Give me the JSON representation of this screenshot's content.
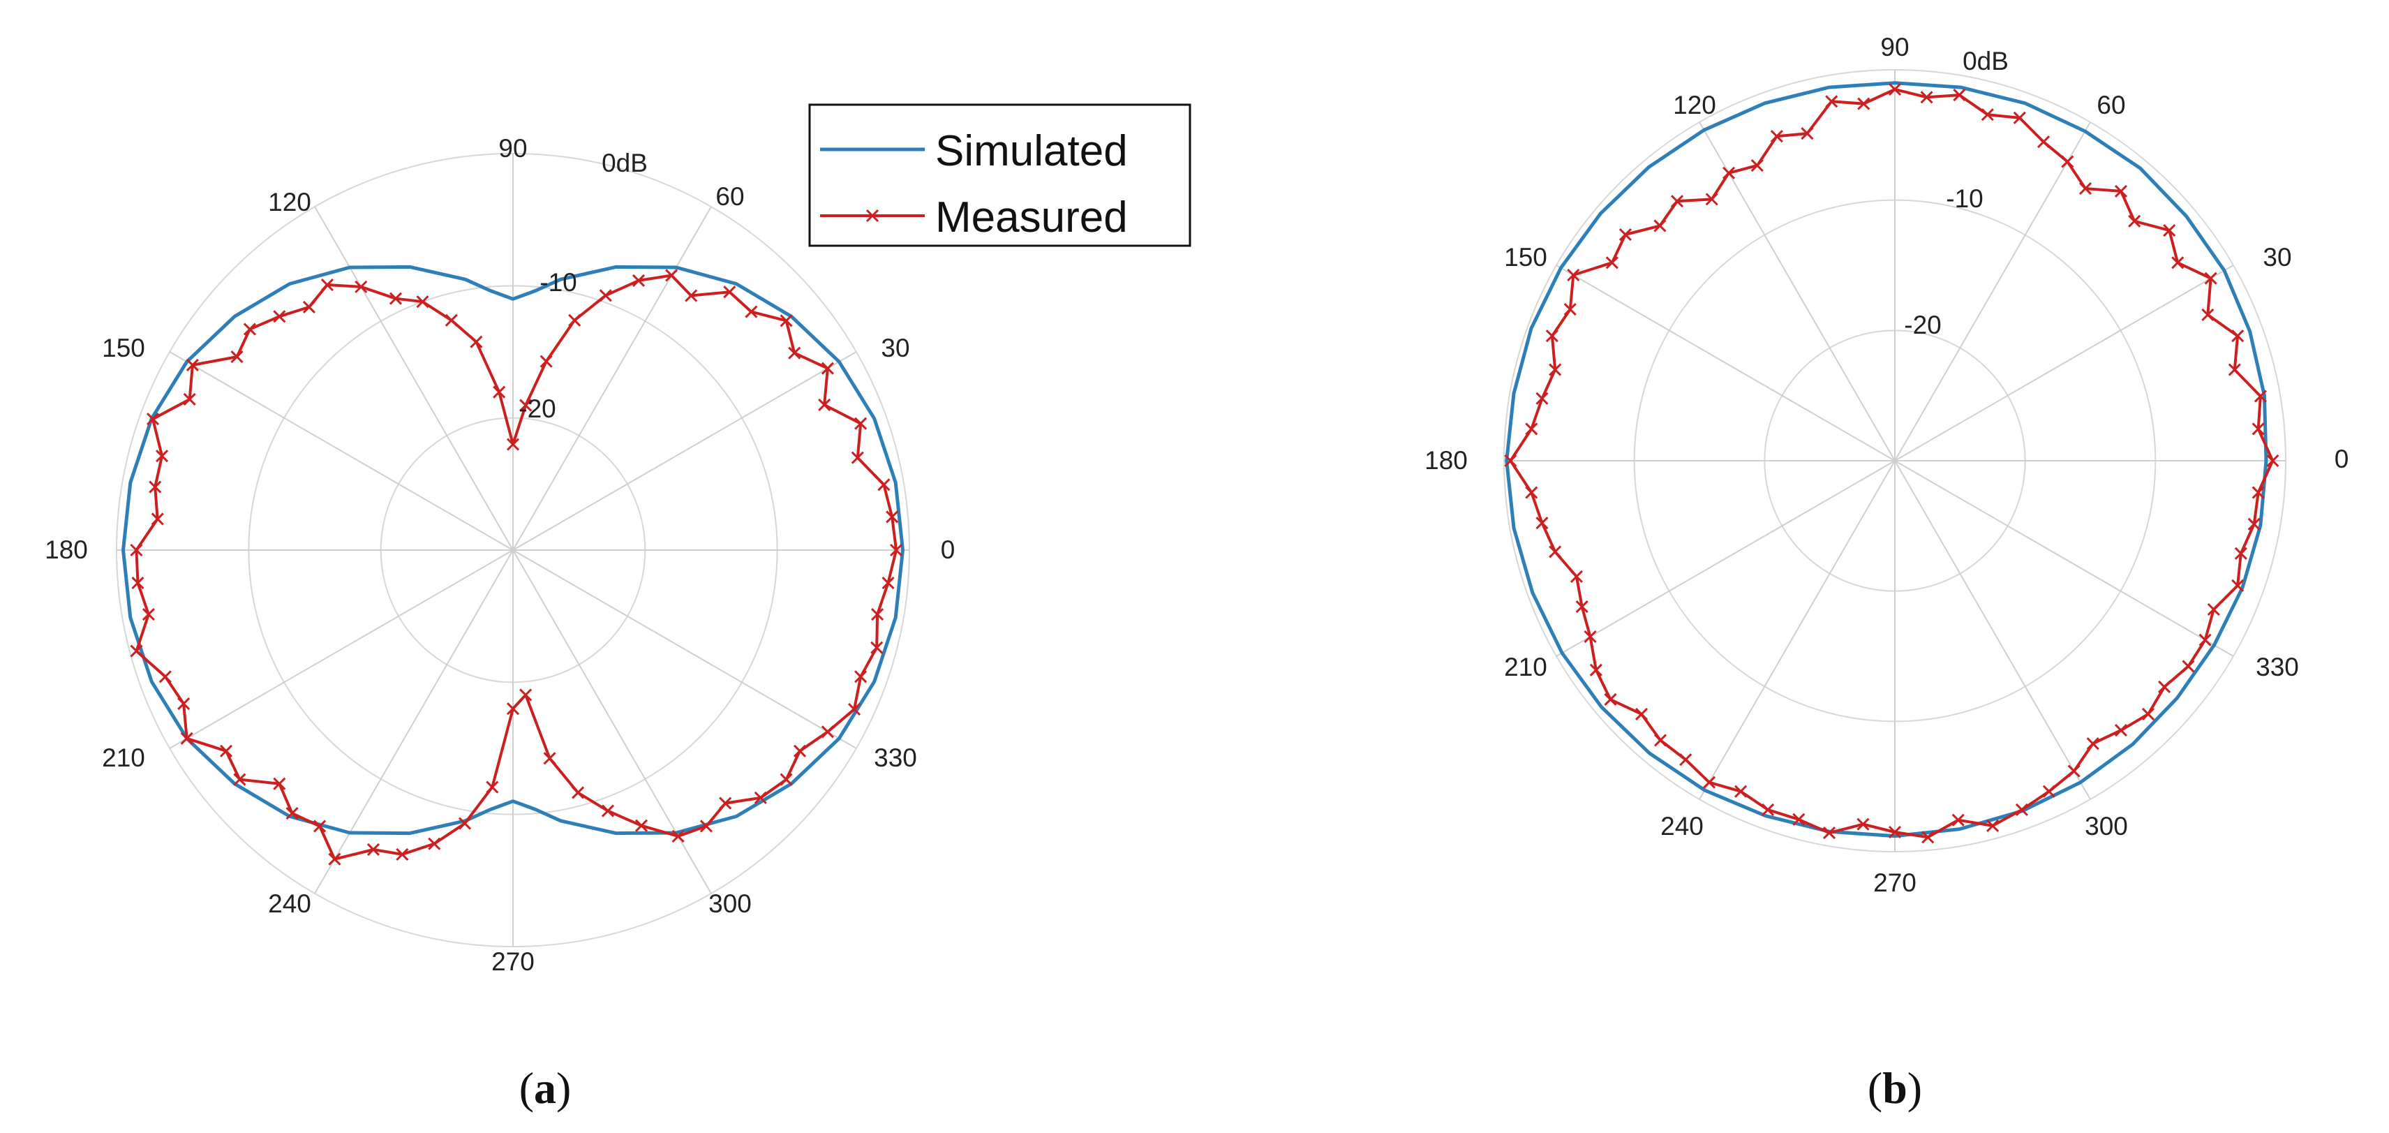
{
  "figure": {
    "captions": {
      "a": "a",
      "b": "b"
    },
    "legend": {
      "simulated": "Simulated",
      "measured": "Measured"
    },
    "colors": {
      "simulated": "#2e7fb8",
      "measured": "#cc1f1f",
      "grid": "#d7d7d7",
      "spoke": "#cfcfcf"
    }
  },
  "chart_data": [
    {
      "id": "a",
      "type": "polar-line",
      "units": "dB",
      "r_range": [
        -30,
        0
      ],
      "r_ticks": [
        -30,
        -20,
        -10,
        0
      ],
      "r_tick_labels": [
        "-20",
        "-10",
        "0dB"
      ],
      "theta_ticks": [
        "0",
        "30",
        "60",
        "90",
        "120",
        "150",
        "180",
        "210",
        "240",
        "270",
        "300",
        "330"
      ],
      "legend_entries": [
        "Simulated",
        "Measured"
      ],
      "series": [
        {
          "name": "Simulated",
          "angles": [
            0,
            10,
            20,
            30,
            40,
            50,
            60,
            70,
            80,
            85,
            90,
            95,
            100,
            110,
            120,
            130,
            140,
            150,
            160,
            170,
            180,
            190,
            200,
            210,
            220,
            230,
            240,
            250,
            260,
            265,
            270,
            275,
            280,
            290,
            300,
            310,
            320,
            330,
            340,
            350
          ],
          "values": [
            -0.5,
            -0.6,
            -0.9,
            -1.5,
            -2.5,
            -3.7,
            -5.3,
            -7.2,
            -9.2,
            -10.3,
            -11.0,
            -10.3,
            -9.2,
            -7.2,
            -5.3,
            -3.7,
            -2.5,
            -1.5,
            -0.9,
            -0.6,
            -0.5,
            -0.6,
            -0.9,
            -1.5,
            -2.5,
            -3.7,
            -5.3,
            -7.2,
            -9.2,
            -10.3,
            -11.0,
            -10.3,
            -9.2,
            -7.2,
            -5.3,
            -3.7,
            -2.5,
            -1.5,
            -0.9,
            -0.6
          ]
        },
        {
          "name": "Measured",
          "angles": [
            0,
            5,
            10,
            15,
            20,
            25,
            30,
            35,
            40,
            45,
            50,
            55,
            60,
            65,
            70,
            75,
            80,
            85,
            90,
            95,
            100,
            105,
            110,
            115,
            120,
            125,
            130,
            135,
            140,
            145,
            150,
            155,
            160,
            165,
            170,
            175,
            180,
            185,
            190,
            195,
            200,
            205,
            210,
            215,
            220,
            225,
            230,
            235,
            240,
            245,
            250,
            255,
            260,
            265,
            270,
            275,
            280,
            285,
            290,
            295,
            300,
            305,
            310,
            315,
            320,
            325,
            330,
            335,
            340,
            345,
            350,
            355
          ],
          "values": [
            -1.0,
            -1.2,
            -1.5,
            -3.0,
            -2.0,
            -4.0,
            -2.5,
            -4.0,
            -3.0,
            -4.5,
            -4.5,
            -6.5,
            -6.0,
            -7.5,
            -9.5,
            -12.0,
            -15.5,
            -19.0,
            -22.0,
            -18.0,
            -14.0,
            -12.0,
            -10.0,
            -9.0,
            -7.0,
            -5.5,
            -6.0,
            -5.0,
            -4.0,
            -4.5,
            -2.0,
            -3.0,
            -1.0,
            -2.5,
            -2.5,
            -3.0,
            -1.5,
            -1.5,
            -2.0,
            -0.5,
            -2.0,
            -2.5,
            -1.5,
            -3.5,
            -3.0,
            -5.0,
            -4.0,
            -4.5,
            -3.0,
            -5.0,
            -5.5,
            -7.0,
            -9.0,
            -12.0,
            -18.0,
            -19.0,
            -14.0,
            -11.0,
            -9.0,
            -7.0,
            -5.0,
            -4.5,
            -5.0,
            -3.5,
            -3.0,
            -3.5,
            -2.5,
            -1.5,
            -2.0,
            -1.5,
            -2.0,
            -1.5
          ]
        }
      ]
    },
    {
      "id": "b",
      "type": "polar-line",
      "units": "dB",
      "r_range": [
        -30,
        0
      ],
      "r_ticks": [
        -30,
        -20,
        -10,
        0
      ],
      "r_tick_labels": [
        "-20",
        "-10",
        "0dB"
      ],
      "theta_ticks": [
        "0",
        "30",
        "60",
        "90",
        "120",
        "150",
        "180",
        "210",
        "240",
        "270",
        "300",
        "330"
      ],
      "series": [
        {
          "name": "Simulated",
          "angles": [
            0,
            10,
            20,
            30,
            40,
            50,
            60,
            70,
            80,
            90,
            100,
            110,
            120,
            130,
            140,
            150,
            160,
            170,
            180,
            190,
            200,
            210,
            220,
            230,
            240,
            250,
            260,
            270,
            280,
            290,
            300,
            310,
            320,
            330,
            340,
            350
          ],
          "values": [
            -1.5,
            -1.2,
            -1.0,
            -0.8,
            -0.8,
            -0.7,
            -0.8,
            -0.8,
            -0.9,
            -1.0,
            -0.9,
            -0.8,
            -0.7,
            -0.6,
            -0.5,
            -0.4,
            -0.3,
            -0.3,
            -0.2,
            -0.3,
            -0.4,
            -0.5,
            -0.6,
            -0.7,
            -0.8,
            -1.0,
            -1.1,
            -1.2,
            -1.3,
            -1.4,
            -1.5,
            -1.6,
            -1.7,
            -1.7,
            -1.6,
            -1.5
          ]
        },
        {
          "name": "Measured",
          "angles": [
            0,
            5,
            10,
            15,
            20,
            25,
            30,
            35,
            40,
            45,
            50,
            55,
            60,
            65,
            70,
            75,
            80,
            85,
            90,
            95,
            100,
            105,
            110,
            115,
            120,
            125,
            130,
            135,
            140,
            145,
            150,
            155,
            160,
            165,
            170,
            175,
            180,
            185,
            190,
            195,
            200,
            205,
            210,
            215,
            220,
            225,
            230,
            235,
            240,
            245,
            250,
            255,
            260,
            265,
            270,
            275,
            280,
            285,
            290,
            295,
            300,
            305,
            310,
            315,
            320,
            325,
            330,
            335,
            340,
            345,
            350,
            355
          ],
          "values": [
            -1.0,
            -2.0,
            -1.5,
            -3.0,
            -2.0,
            -3.5,
            -2.0,
            -3.5,
            -2.5,
            -4.0,
            -3.0,
            -4.5,
            -3.5,
            -3.0,
            -2.0,
            -2.5,
            -1.5,
            -2.0,
            -1.5,
            -2.5,
            -2.0,
            -4.0,
            -3.5,
            -5.0,
            -4.5,
            -5.5,
            -4.0,
            -4.5,
            -3.0,
            -3.5,
            -1.5,
            -2.5,
            -2.0,
            -3.0,
            -2.5,
            -2.0,
            -0.5,
            -2.0,
            -2.5,
            -3.0,
            -4.0,
            -3.5,
            -3.0,
            -2.0,
            -1.5,
            -2.5,
            -2.0,
            -2.0,
            -1.5,
            -2.0,
            -1.5,
            -1.5,
            -1.0,
            -2.0,
            -1.5,
            -1.0,
            -2.0,
            -1.0,
            -1.5,
            -2.0,
            -2.5,
            -3.5,
            -3.0,
            -2.5,
            -3.0,
            -2.5,
            -2.5,
            -3.0,
            -2.0,
            -2.5,
            -2.0,
            -2.0
          ]
        }
      ]
    }
  ]
}
